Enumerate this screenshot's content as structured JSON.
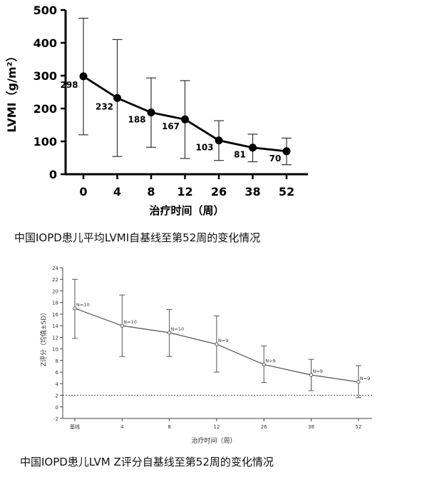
{
  "colors": {
    "line1": "#000000",
    "line2": "#555555",
    "caption": "#111111"
  },
  "captions": {
    "chart1": "中国IOPD患儿平均LVMI自基线至第52周的变化情况",
    "chart2": "中国IOPD患儿LVM Z评分自基线至第52周的变化情况"
  },
  "chart_data": [
    {
      "type": "line",
      "categories": [
        "0",
        "4",
        "8",
        "12",
        "26",
        "38",
        "52"
      ],
      "values": [
        298,
        232,
        188,
        167,
        103,
        81,
        70
      ],
      "error_upper": [
        475,
        410,
        293,
        285,
        163,
        122,
        110
      ],
      "error_lower": [
        120,
        54,
        82,
        48,
        42,
        38,
        29
      ],
      "data_labels": [
        "298",
        "232",
        "188",
        "167",
        "103",
        "81",
        "70"
      ],
      "xlabel": "治疗时间（周）",
      "ylabel": "LVMI（g/m²）",
      "ylim": [
        0,
        500
      ],
      "yticks": [
        0,
        100,
        200,
        300,
        400,
        500
      ],
      "grid": false
    },
    {
      "type": "line",
      "categories": [
        "基线",
        "4",
        "8",
        "12",
        "26",
        "38",
        "52"
      ],
      "values": [
        17,
        14,
        12.8,
        10.8,
        7.3,
        5.5,
        4.3
      ],
      "error_upper": [
        22,
        19.3,
        16.8,
        15.7,
        10.5,
        8.2,
        7.1
      ],
      "error_lower": [
        11.8,
        8.7,
        8.7,
        6,
        4.2,
        2.8,
        1.6
      ],
      "data_labels": [
        "N=10",
        "N=10",
        "N=10",
        "N=9",
        "N=9",
        "N=9",
        "N=9"
      ],
      "xlabel": "治疗时间（周）",
      "ylabel": "Z评分（均值±SD）",
      "ylim": [
        -2,
        24
      ],
      "yticks": [
        -2,
        0,
        2,
        4,
        6,
        8,
        10,
        12,
        14,
        16,
        18,
        20,
        22,
        24
      ],
      "reference_lines": [
        2,
        -2
      ],
      "grid": false
    }
  ]
}
